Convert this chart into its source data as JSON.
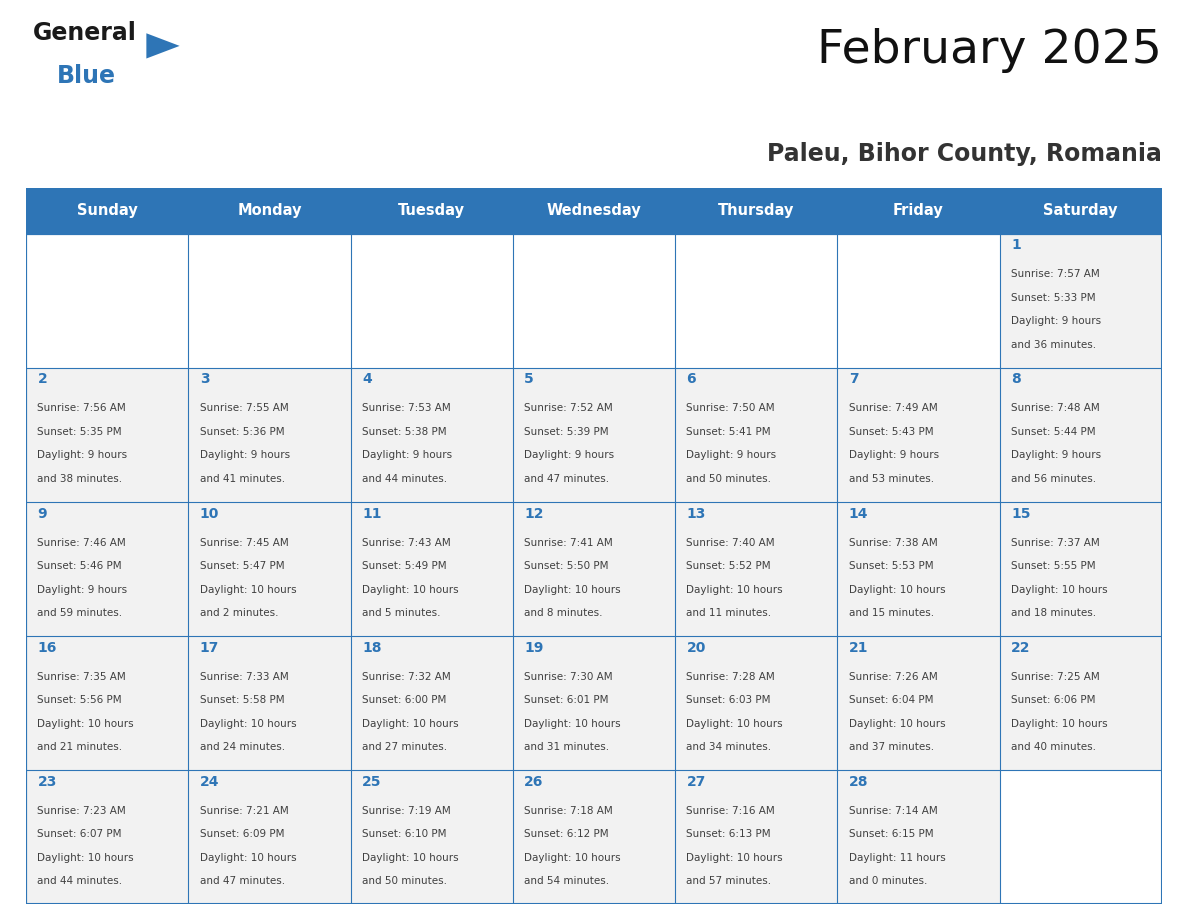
{
  "title": "February 2025",
  "subtitle": "Paleu, Bihor County, Romania",
  "header_bg_color": "#2E75B6",
  "header_text_color": "#FFFFFF",
  "text_color": "#404040",
  "day_number_color": "#2E75B6",
  "border_color": "#2E75B6",
  "cell_bg_color": "#F2F2F2",
  "days_of_week": [
    "Sunday",
    "Monday",
    "Tuesday",
    "Wednesday",
    "Thursday",
    "Friday",
    "Saturday"
  ],
  "calendar": [
    [
      null,
      null,
      null,
      null,
      null,
      null,
      {
        "day": 1,
        "sunrise": "7:57 AM",
        "sunset": "5:33 PM",
        "daylight": "9 hours\nand 36 minutes."
      }
    ],
    [
      {
        "day": 2,
        "sunrise": "7:56 AM",
        "sunset": "5:35 PM",
        "daylight": "9 hours\nand 38 minutes."
      },
      {
        "day": 3,
        "sunrise": "7:55 AM",
        "sunset": "5:36 PM",
        "daylight": "9 hours\nand 41 minutes."
      },
      {
        "day": 4,
        "sunrise": "7:53 AM",
        "sunset": "5:38 PM",
        "daylight": "9 hours\nand 44 minutes."
      },
      {
        "day": 5,
        "sunrise": "7:52 AM",
        "sunset": "5:39 PM",
        "daylight": "9 hours\nand 47 minutes."
      },
      {
        "day": 6,
        "sunrise": "7:50 AM",
        "sunset": "5:41 PM",
        "daylight": "9 hours\nand 50 minutes."
      },
      {
        "day": 7,
        "sunrise": "7:49 AM",
        "sunset": "5:43 PM",
        "daylight": "9 hours\nand 53 minutes."
      },
      {
        "day": 8,
        "sunrise": "7:48 AM",
        "sunset": "5:44 PM",
        "daylight": "9 hours\nand 56 minutes."
      }
    ],
    [
      {
        "day": 9,
        "sunrise": "7:46 AM",
        "sunset": "5:46 PM",
        "daylight": "9 hours\nand 59 minutes."
      },
      {
        "day": 10,
        "sunrise": "7:45 AM",
        "sunset": "5:47 PM",
        "daylight": "10 hours\nand 2 minutes."
      },
      {
        "day": 11,
        "sunrise": "7:43 AM",
        "sunset": "5:49 PM",
        "daylight": "10 hours\nand 5 minutes."
      },
      {
        "day": 12,
        "sunrise": "7:41 AM",
        "sunset": "5:50 PM",
        "daylight": "10 hours\nand 8 minutes."
      },
      {
        "day": 13,
        "sunrise": "7:40 AM",
        "sunset": "5:52 PM",
        "daylight": "10 hours\nand 11 minutes."
      },
      {
        "day": 14,
        "sunrise": "7:38 AM",
        "sunset": "5:53 PM",
        "daylight": "10 hours\nand 15 minutes."
      },
      {
        "day": 15,
        "sunrise": "7:37 AM",
        "sunset": "5:55 PM",
        "daylight": "10 hours\nand 18 minutes."
      }
    ],
    [
      {
        "day": 16,
        "sunrise": "7:35 AM",
        "sunset": "5:56 PM",
        "daylight": "10 hours\nand 21 minutes."
      },
      {
        "day": 17,
        "sunrise": "7:33 AM",
        "sunset": "5:58 PM",
        "daylight": "10 hours\nand 24 minutes."
      },
      {
        "day": 18,
        "sunrise": "7:32 AM",
        "sunset": "6:00 PM",
        "daylight": "10 hours\nand 27 minutes."
      },
      {
        "day": 19,
        "sunrise": "7:30 AM",
        "sunset": "6:01 PM",
        "daylight": "10 hours\nand 31 minutes."
      },
      {
        "day": 20,
        "sunrise": "7:28 AM",
        "sunset": "6:03 PM",
        "daylight": "10 hours\nand 34 minutes."
      },
      {
        "day": 21,
        "sunrise": "7:26 AM",
        "sunset": "6:04 PM",
        "daylight": "10 hours\nand 37 minutes."
      },
      {
        "day": 22,
        "sunrise": "7:25 AM",
        "sunset": "6:06 PM",
        "daylight": "10 hours\nand 40 minutes."
      }
    ],
    [
      {
        "day": 23,
        "sunrise": "7:23 AM",
        "sunset": "6:07 PM",
        "daylight": "10 hours\nand 44 minutes."
      },
      {
        "day": 24,
        "sunrise": "7:21 AM",
        "sunset": "6:09 PM",
        "daylight": "10 hours\nand 47 minutes."
      },
      {
        "day": 25,
        "sunrise": "7:19 AM",
        "sunset": "6:10 PM",
        "daylight": "10 hours\nand 50 minutes."
      },
      {
        "day": 26,
        "sunrise": "7:18 AM",
        "sunset": "6:12 PM",
        "daylight": "10 hours\nand 54 minutes."
      },
      {
        "day": 27,
        "sunrise": "7:16 AM",
        "sunset": "6:13 PM",
        "daylight": "10 hours\nand 57 minutes."
      },
      {
        "day": 28,
        "sunrise": "7:14 AM",
        "sunset": "6:15 PM",
        "daylight": "11 hours\nand 0 minutes."
      },
      null
    ]
  ],
  "figsize": [
    11.88,
    9.18
  ],
  "dpi": 100
}
